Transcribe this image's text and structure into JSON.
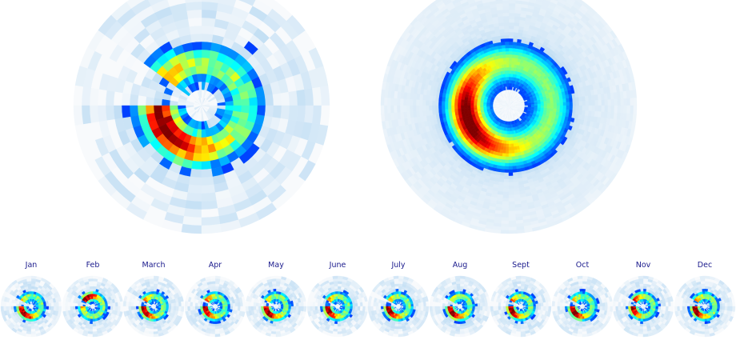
{
  "chart_data": [
    {
      "type": "heatmap",
      "projection": "polar",
      "title": "",
      "binning": "coarse",
      "colormap": "jet",
      "hotspot_angle_deg": 210,
      "wedge_gap_angle_deg": 160
    },
    {
      "type": "heatmap",
      "projection": "polar",
      "title": "",
      "binning": "fine",
      "colormap": "jet",
      "hotspot_angle_deg": 200,
      "wedge_gap_angle_deg": null
    },
    {
      "type": "heatmap",
      "projection": "polar",
      "small_multiples": true,
      "colormap": "jet",
      "panels": [
        {
          "label": "Jan",
          "hotspot_angle_deg": 220
        },
        {
          "label": "Feb",
          "hotspot_angle_deg": 130
        },
        {
          "label": "March",
          "hotspot_angle_deg": 200
        },
        {
          "label": "Apr",
          "hotspot_angle_deg": 190
        },
        {
          "label": "May",
          "hotspot_angle_deg": 215
        },
        {
          "label": "June",
          "hotspot_angle_deg": 200
        },
        {
          "label": "July",
          "hotspot_angle_deg": 205
        },
        {
          "label": "Aug",
          "hotspot_angle_deg": 220
        },
        {
          "label": "Sept",
          "hotspot_angle_deg": 200
        },
        {
          "label": "Oct",
          "hotspot_angle_deg": 215
        },
        {
          "label": "Nov",
          "hotspot_angle_deg": 180
        },
        {
          "label": "Dec",
          "hotspot_angle_deg": 200
        }
      ]
    }
  ]
}
